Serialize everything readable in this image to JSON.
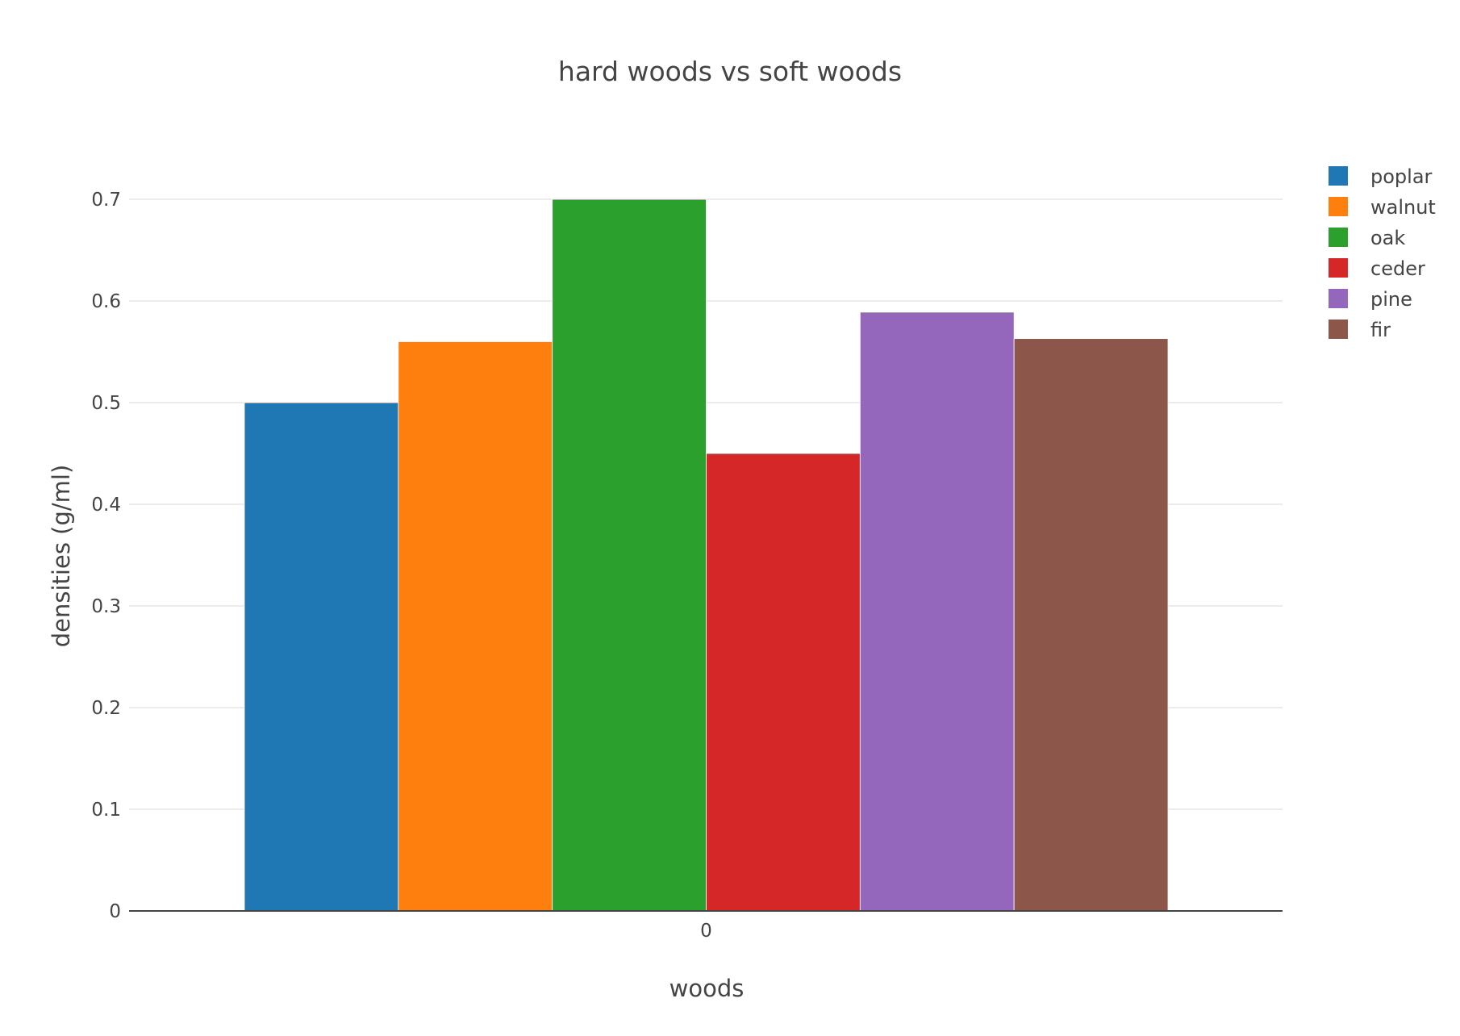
{
  "chart_data": {
    "type": "bar",
    "title": "hard woods vs soft woods",
    "xlabel": "woods",
    "ylabel": "densities (g/ml)",
    "categories": [
      "0"
    ],
    "ylim": [
      0,
      0.7
    ],
    "yticks": [
      "0",
      "0.1",
      "0.2",
      "0.3",
      "0.4",
      "0.5",
      "0.6",
      "0.7"
    ],
    "grid": true,
    "legend_position": "top-right",
    "series": [
      {
        "name": "poplar",
        "values": [
          0.5
        ],
        "color": "#1f77b4"
      },
      {
        "name": "walnut",
        "values": [
          0.56
        ],
        "color": "#ff7f0e"
      },
      {
        "name": "oak",
        "values": [
          0.7
        ],
        "color": "#2ca02c"
      },
      {
        "name": "ceder",
        "values": [
          0.45
        ],
        "color": "#d62728"
      },
      {
        "name": "pine",
        "values": [
          0.589
        ],
        "color": "#9467bd"
      },
      {
        "name": "fir",
        "values": [
          0.563
        ],
        "color": "#8c564b"
      }
    ]
  }
}
